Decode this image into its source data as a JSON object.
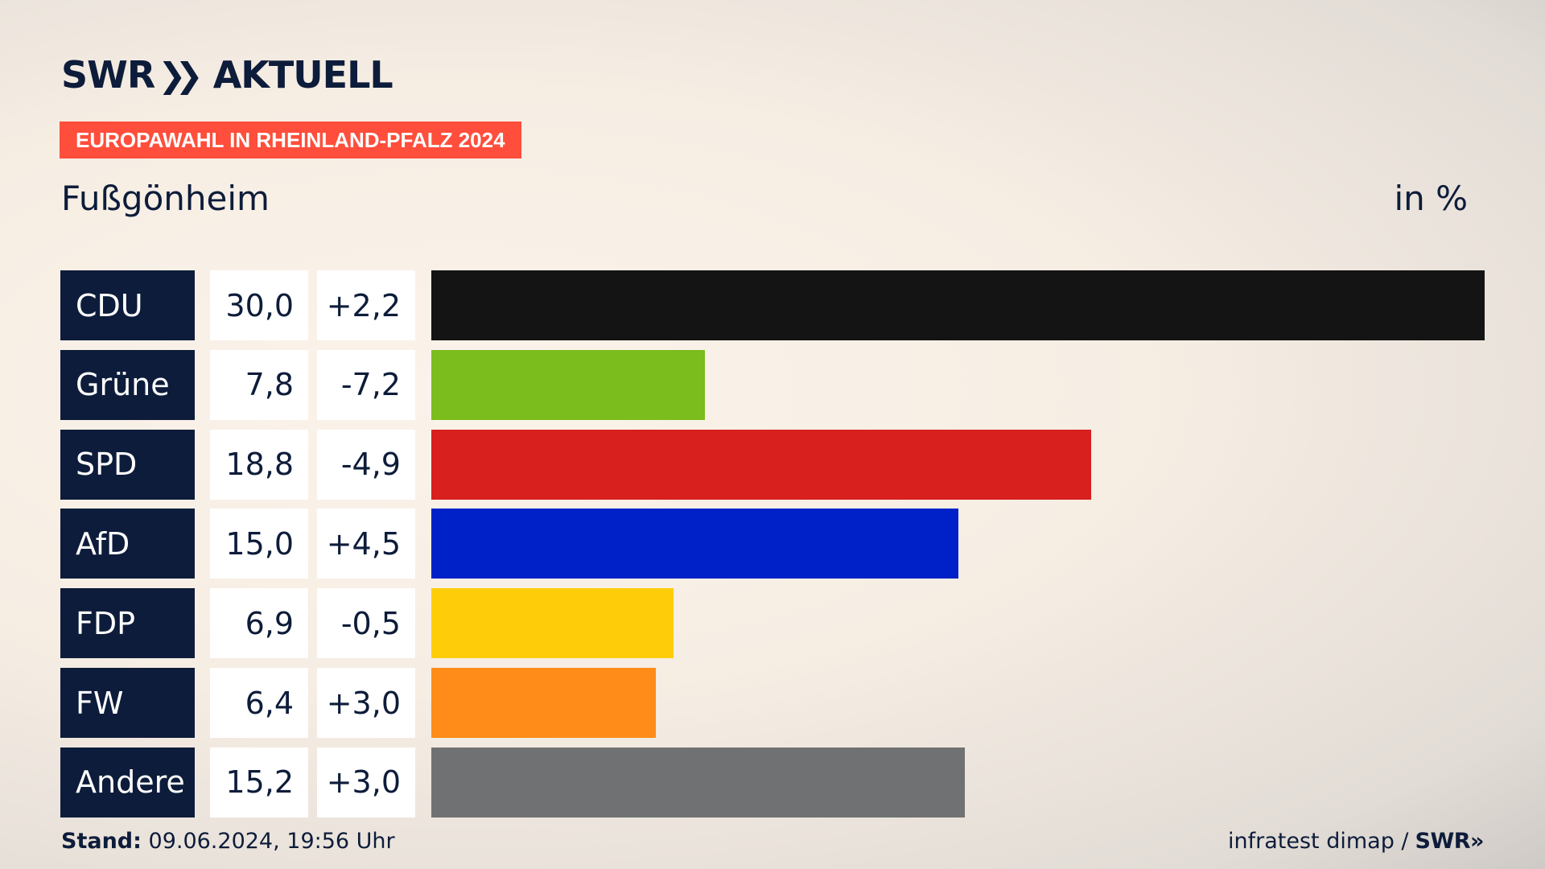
{
  "logo": {
    "text": "SWR",
    "chevrons": "»",
    "section": "AKTUELL"
  },
  "banner": "EUROPAWAHL IN RHEINLAND-PFALZ 2024",
  "place": "Fußgönheim",
  "unit": "in %",
  "footer": {
    "stand_label": "Stand:",
    "stand_value": "09.06.2024, 19:56 Uhr",
    "source": "infratest dimap /",
    "source_logo": "SWR»"
  },
  "chart_data": {
    "type": "bar",
    "orientation": "horizontal",
    "categories": [
      "CDU",
      "Grüne",
      "SPD",
      "AfD",
      "FDP",
      "FW",
      "Andere"
    ],
    "values": [
      30.0,
      7.8,
      18.8,
      15.0,
      6.9,
      6.4,
      15.2
    ],
    "value_labels": [
      "30,0",
      "7,8",
      "18,8",
      "15,0",
      "6,9",
      "6,4",
      "15,2"
    ],
    "diff_labels": [
      "+2,2",
      "-7,2",
      "-4,9",
      "+4,5",
      "-0,5",
      "+3,0",
      "+3,0"
    ],
    "colors": [
      "#141414",
      "#7abd1d",
      "#d8201e",
      "#0021c8",
      "#ffcc0a",
      "#ff8c18",
      "#707172"
    ],
    "xlim": [
      0,
      30.0
    ]
  }
}
